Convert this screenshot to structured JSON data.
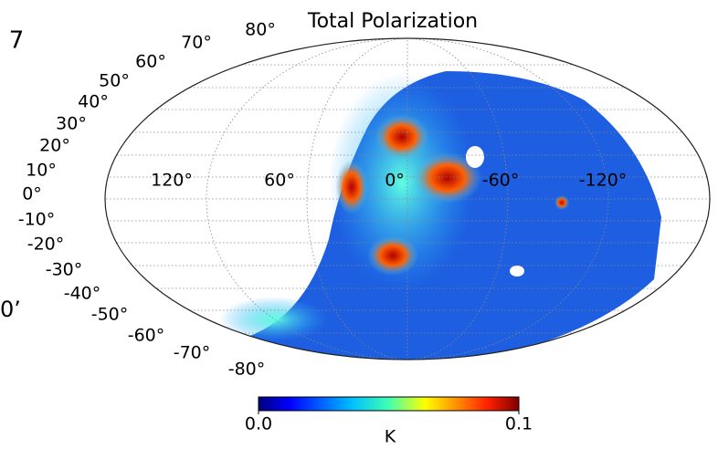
{
  "header": {
    "title": "Total Polarization"
  },
  "edge_fragments": [
    "7",
    "0’"
  ],
  "latitude_labels": [
    "80°",
    "70°",
    "60°",
    "50°",
    "40°",
    "30°",
    "20°",
    "10°",
    "0°",
    "-10°",
    "-20°",
    "-30°",
    "-40°",
    "-50°",
    "-60°",
    "-70°",
    "-80°"
  ],
  "longitude_labels": [
    "120°",
    "60°",
    "0°",
    "-60°",
    "-120°"
  ],
  "colorbar": {
    "label": "K",
    "clim": [
      0,
      0.1
    ],
    "ticks": [
      {
        "value": 0,
        "label": "0.0"
      },
      {
        "value": 0.1,
        "label": "0.1"
      }
    ]
  }
}
